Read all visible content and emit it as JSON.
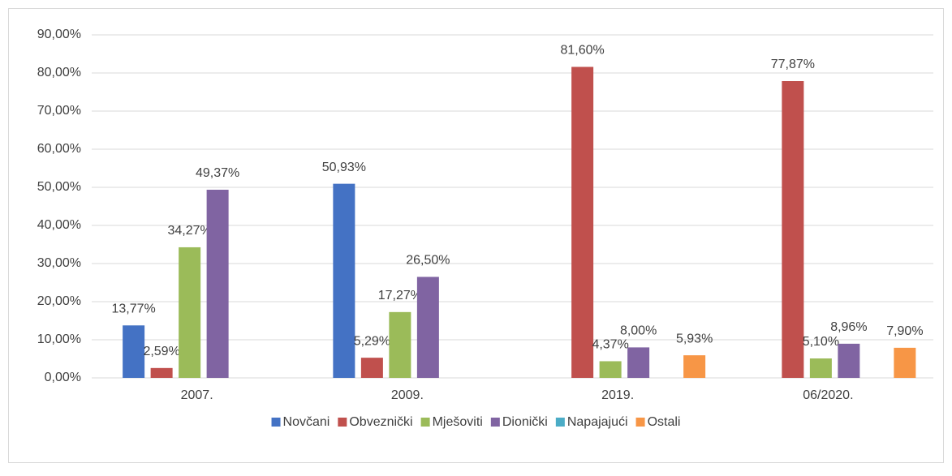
{
  "chart_data": {
    "type": "bar",
    "categories": [
      "2007.",
      "2009.",
      "2019.",
      "06/2020."
    ],
    "series": [
      {
        "name": "Novčani",
        "color": "#4472c4",
        "values": [
          13.77,
          50.93,
          null,
          null
        ],
        "value_labels": [
          "13,77%",
          "50,93%",
          null,
          null
        ]
      },
      {
        "name": "Obveznički",
        "color": "#c0504d",
        "values": [
          2.59,
          5.29,
          81.6,
          77.87
        ],
        "value_labels": [
          "2,59%",
          "5,29%",
          "81,60%",
          "77,87%"
        ]
      },
      {
        "name": "Mješoviti",
        "color": "#9bbb59",
        "values": [
          34.27,
          17.27,
          4.37,
          5.1
        ],
        "value_labels": [
          "34,27%",
          "17,27%",
          "4,37%",
          "5,10%"
        ]
      },
      {
        "name": "Dionički",
        "color": "#8064a2",
        "values": [
          49.37,
          26.5,
          8.0,
          8.96
        ],
        "value_labels": [
          "49,37%",
          "26,50%",
          "8,00%",
          "8,96%"
        ]
      },
      {
        "name": "Napajajući",
        "color": "#4bacc6",
        "values": [
          null,
          null,
          null,
          null
        ],
        "value_labels": [
          null,
          null,
          null,
          null
        ]
      },
      {
        "name": "Ostali",
        "color": "#f79646",
        "values": [
          null,
          null,
          5.93,
          7.9
        ],
        "value_labels": [
          null,
          null,
          "5,93%",
          "7,90%"
        ]
      }
    ],
    "ylim": [
      0,
      90
    ],
    "yticks": [
      {
        "value": 0,
        "label": "0,00%"
      },
      {
        "value": 10,
        "label": "10,00%"
      },
      {
        "value": 20,
        "label": "20,00%"
      },
      {
        "value": 30,
        "label": "30,00%"
      },
      {
        "value": 40,
        "label": "40,00%"
      },
      {
        "value": 50,
        "label": "50,00%"
      },
      {
        "value": 60,
        "label": "60,00%"
      },
      {
        "value": 70,
        "label": "70,00%"
      },
      {
        "value": 80,
        "label": "80,00%"
      },
      {
        "value": 90,
        "label": "90,00%"
      }
    ],
    "grid": true,
    "legend": "bottom"
  }
}
